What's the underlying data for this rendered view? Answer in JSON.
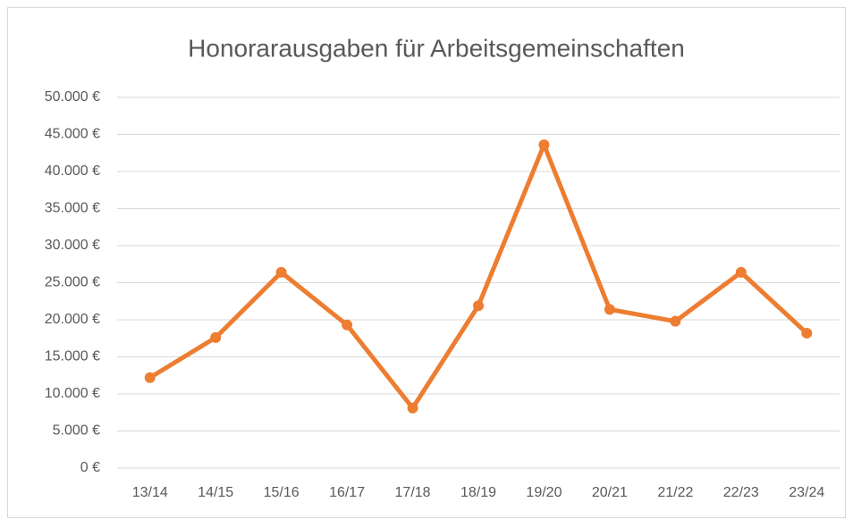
{
  "chart_data": {
    "type": "line",
    "title": "Honorarausgaben  für Arbeitsgemeinschaften",
    "categories": [
      "13/14",
      "14/15",
      "15/16",
      "16/17",
      "17/18",
      "18/19",
      "19/20",
      "20/21",
      "21/22",
      "22/23",
      "23/24"
    ],
    "series": [
      {
        "name": "Honorarausgaben",
        "color": "#ed7d31",
        "values": [
          12200,
          17600,
          26400,
          19300,
          8100,
          21900,
          43600,
          21400,
          19800,
          26400,
          18200
        ]
      }
    ],
    "ylim": [
      0,
      50000
    ],
    "yticks": [
      {
        "value": 0,
        "label": "0 €"
      },
      {
        "value": 5000,
        "label": "5.000 €"
      },
      {
        "value": 10000,
        "label": "10.000 €"
      },
      {
        "value": 15000,
        "label": "15.000 €"
      },
      {
        "value": 20000,
        "label": "20.000 €"
      },
      {
        "value": 25000,
        "label": "25.000 €"
      },
      {
        "value": 30000,
        "label": "30.000 €"
      },
      {
        "value": 35000,
        "label": "35.000 €"
      },
      {
        "value": 40000,
        "label": "40.000 €"
      },
      {
        "value": 45000,
        "label": "45.000 €"
      },
      {
        "value": 50000,
        "label": "50.000 €"
      }
    ],
    "grid": true
  }
}
